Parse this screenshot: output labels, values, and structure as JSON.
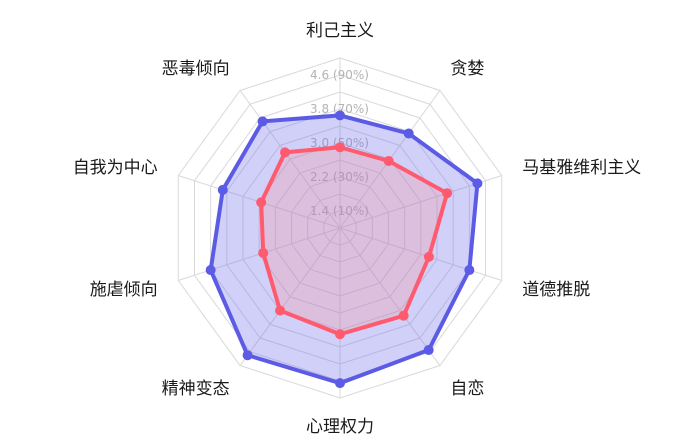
{
  "chart_data": {
    "type": "radar",
    "axes": [
      "利己主义",
      "贪婪",
      "马基雅维利主义",
      "道德推脱",
      "自恋",
      "心理权力",
      "精神变态",
      "施虐倾向",
      "自我为中心",
      "恶毒倾向"
    ],
    "ticks": [
      {
        "value": 1.4,
        "label": "1.4 (10%)"
      },
      {
        "value": 2.2,
        "label": "2.2 (30%)"
      },
      {
        "value": 3.0,
        "label": "3.0 (50%)"
      },
      {
        "value": 3.8,
        "label": "3.8 (70%)"
      },
      {
        "value": 4.6,
        "label": "4.6 (90%)"
      }
    ],
    "range": [
      1.0,
      5.0
    ],
    "rings": 10,
    "series": [
      {
        "color": "#5b5be6",
        "fill": "rgba(110,110,235,0.32)",
        "values": [
          3.65,
          3.75,
          4.4,
          4.2,
          4.55,
          4.65,
          4.7,
          4.2,
          3.9,
          4.1
        ]
      },
      {
        "color": "#ff5a6e",
        "fill": "rgba(255,140,140,0.25)",
        "values": [
          2.9,
          2.95,
          3.65,
          3.2,
          3.55,
          3.5,
          3.4,
          2.9,
          2.95,
          3.2
        ]
      }
    ],
    "grid": true,
    "legend": "none"
  }
}
